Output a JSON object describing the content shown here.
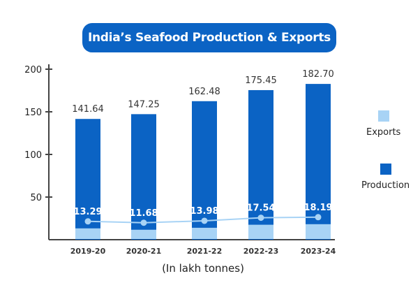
{
  "title": "India’s Seafood Production & Exports",
  "unit_note": "(In lakh tonnes)",
  "chart_data": {
    "type": "bar",
    "title": "India’s Seafood Production & Exports",
    "categories": [
      "2019-20",
      "2020-21",
      "2021-22",
      "2022-23",
      "2023-24"
    ],
    "series": [
      {
        "name": "Production",
        "values": [
          141.64,
          147.25,
          162.48,
          175.45,
          182.7
        ],
        "color": "#0b63c4"
      },
      {
        "name": "Exports",
        "values": [
          13.29,
          11.68,
          13.98,
          17.54,
          18.19
        ],
        "color": "#a8d3f5"
      }
    ],
    "yticks": [
      50,
      100,
      150,
      200
    ],
    "ylim": [
      0,
      200
    ],
    "legend": "right",
    "grid": false
  },
  "legend": {
    "exports": "Exports",
    "production": "Production"
  }
}
